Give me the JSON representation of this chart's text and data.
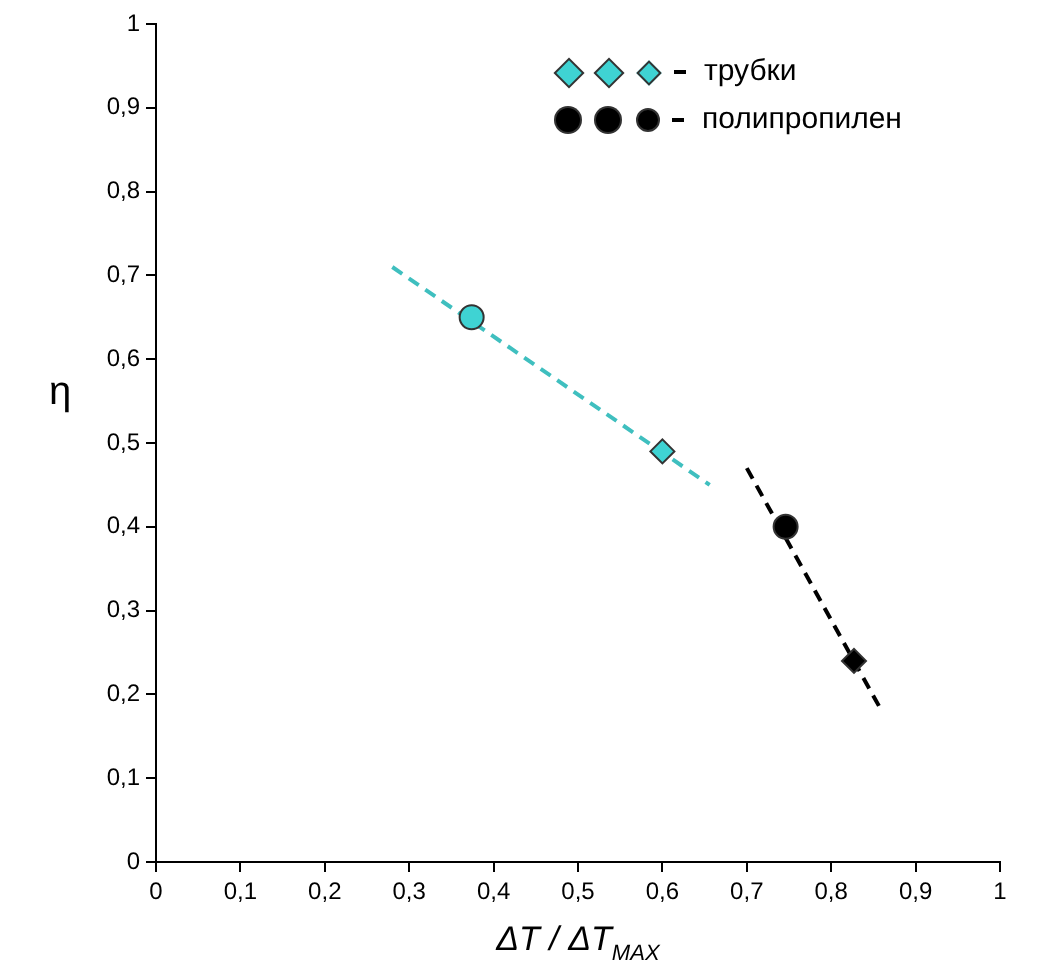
{
  "chart_data": {
    "type": "scatter",
    "xlabel": "ΔT / ΔT$_{MAX}$",
    "ylabel": "η",
    "xlim": [
      0,
      1
    ],
    "ylim": [
      0,
      1
    ],
    "xticks": [
      0,
      {
        "value": 0.1,
        "label": "0,1"
      },
      {
        "value": 0.2,
        "label": "0,2"
      },
      {
        "value": 0.3,
        "label": "0,3"
      },
      {
        "value": 0.4,
        "label": "0,4"
      },
      {
        "value": 0.5,
        "label": "0,5"
      },
      {
        "value": 0.6,
        "label": "0,6"
      },
      {
        "value": 0.7,
        "label": "0,7"
      },
      {
        "value": 0.8,
        "label": "0,8"
      },
      {
        "value": 0.9,
        "label": "0,9"
      },
      1
    ],
    "yticks": [
      0,
      {
        "value": 0.1,
        "label": "0,1"
      },
      {
        "value": 0.2,
        "label": "0,2"
      },
      {
        "value": 0.3,
        "label": "0,3"
      },
      {
        "value": 0.4,
        "label": "0,4"
      },
      {
        "value": 0.5,
        "label": "0,5"
      },
      {
        "value": 0.6,
        "label": "0,6"
      },
      {
        "value": 0.7,
        "label": "0,7"
      },
      {
        "value": 0.8,
        "label": "0,8"
      },
      {
        "value": 0.9,
        "label": "0,9"
      },
      1
    ],
    "grid": false,
    "legend": "top right",
    "series": [
      {
        "name": "трубки",
        "marker": "diamond",
        "color": "#3fd3d3",
        "x": [
          0.6
        ],
        "values": [
          0.49
        ]
      },
      {
        "name": "полипропилен",
        "marker": "circle",
        "color": "#000000",
        "x": [
          0.746
        ],
        "values": [
          0.4
        ]
      },
      {
        "marker": "circle",
        "color": "#3fd3d3",
        "x": [
          0.374
        ],
        "values": [
          0.65
        ]
      },
      {
        "marker": "diamond",
        "color": "#000000",
        "x": [
          0.827
        ],
        "values": [
          0.24
        ]
      },
      {
        "type": "line",
        "marker": "none",
        "line_style": "dashed",
        "color": "#3fbfbf",
        "x": [
          0.28,
          0.656
        ],
        "values": [
          0.71,
          0.45
        ]
      },
      {
        "type": "line",
        "marker": "none",
        "line_style": "dashed",
        "color": "#000000",
        "x": [
          0.7,
          0.86
        ],
        "values": [
          0.47,
          0.18
        ]
      }
    ]
  }
}
